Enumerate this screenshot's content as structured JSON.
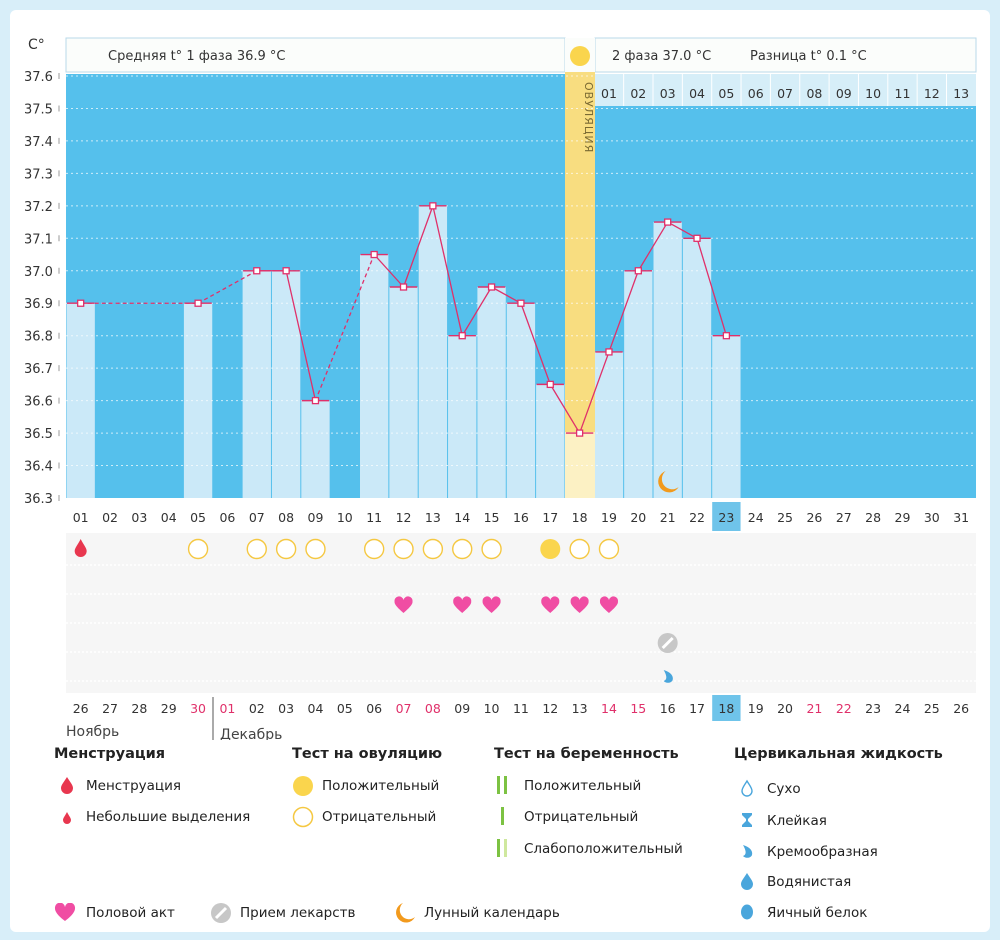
{
  "colors": {
    "chart_bg": "#55c0ec",
    "bar": "#cbe9f8",
    "line": "#e0306a",
    "ovulation": "#f8dd80",
    "heart": "#f04da3",
    "positive_test": "#fad54d",
    "today": "#6fc4ea",
    "weekend_day": "#e0306a"
  },
  "header": {
    "unit": "C°",
    "phase1": "Средняя t° 1 фаза 36.9 °C",
    "phase2": "2 фаза 37.0 °C",
    "diff": "Разница t° 0.1 °C",
    "ovulation_label": "ОВУЛЯЦИЯ"
  },
  "chart_data": {
    "type": "line",
    "title": "",
    "xlabel": "",
    "ylabel": "C°",
    "ylim": [
      36.3,
      37.6
    ],
    "y_ticks": [
      "37.6",
      "37.5",
      "37.4",
      "37.3",
      "37.2",
      "37.1",
      "37.0",
      "36.9",
      "36.8",
      "36.7",
      "36.6",
      "36.5",
      "36.4",
      "36.3"
    ],
    "x": [
      "01",
      "02",
      "03",
      "04",
      "05",
      "06",
      "07",
      "08",
      "09",
      "10",
      "11",
      "12",
      "13",
      "14",
      "15",
      "16",
      "17",
      "18",
      "19",
      "20",
      "21",
      "22",
      "23",
      "24",
      "25",
      "26",
      "27",
      "28",
      "29",
      "30",
      "31"
    ],
    "temperatures": [
      36.9,
      null,
      null,
      null,
      36.9,
      null,
      37.0,
      37.0,
      36.6,
      null,
      37.05,
      36.95,
      37.2,
      36.8,
      36.95,
      36.9,
      36.65,
      36.5,
      36.75,
      37.0,
      37.15,
      37.1,
      36.8,
      null,
      null,
      null,
      null,
      null,
      null,
      null,
      null
    ],
    "ovulation_day": "18",
    "phase2_day_labels": [
      "01",
      "02",
      "03",
      "04",
      "05",
      "06",
      "07",
      "08",
      "09",
      "10",
      "11",
      "12",
      "13"
    ],
    "today": "23",
    "grid": true
  },
  "markers": {
    "menstruation_days": [
      "01"
    ],
    "ovulation_test_negative_days": [
      "05",
      "07",
      "08",
      "09",
      "11",
      "12",
      "13",
      "14",
      "15",
      "18",
      "19"
    ],
    "ovulation_test_positive_days": [
      "17"
    ],
    "intercourse_days": [
      "12",
      "14",
      "15",
      "17",
      "18",
      "19"
    ],
    "medication_days": [
      "21"
    ],
    "creamy_fluid_days": [
      "21"
    ],
    "moon_days": [
      "21"
    ]
  },
  "dates": {
    "values": [
      "26",
      "27",
      "28",
      "29",
      "30",
      "01",
      "02",
      "03",
      "04",
      "05",
      "06",
      "07",
      "08",
      "09",
      "10",
      "11",
      "12",
      "13",
      "14",
      "15",
      "16",
      "17",
      "18",
      "19",
      "20",
      "21",
      "22",
      "23",
      "24",
      "25",
      "26"
    ],
    "red_indices": [
      4,
      5,
      11,
      12,
      18,
      19,
      25,
      26
    ],
    "today_index": 22,
    "month1": "Ноябрь",
    "month2": "Декабрь"
  },
  "legend": {
    "menstruation": {
      "title": "Менструация",
      "items": [
        "Менструация",
        "Небольшие выделения"
      ]
    },
    "ovulation_test": {
      "title": "Тест на овуляцию",
      "items": [
        "Положительный",
        "Отрицательный"
      ]
    },
    "pregnancy_test": {
      "title": "Тест на беременность",
      "items": [
        "Положительный",
        "Отрицательный",
        "Слабоположительный"
      ]
    },
    "cervical": {
      "title": "Цервикальная жидкость",
      "items": [
        "Сухо",
        "Клейкая",
        "Кремообразная",
        "Водянистая",
        "Яичный белок"
      ]
    },
    "bottom": [
      "Половой акт",
      "Прием лекарств",
      "Лунный календарь"
    ]
  }
}
